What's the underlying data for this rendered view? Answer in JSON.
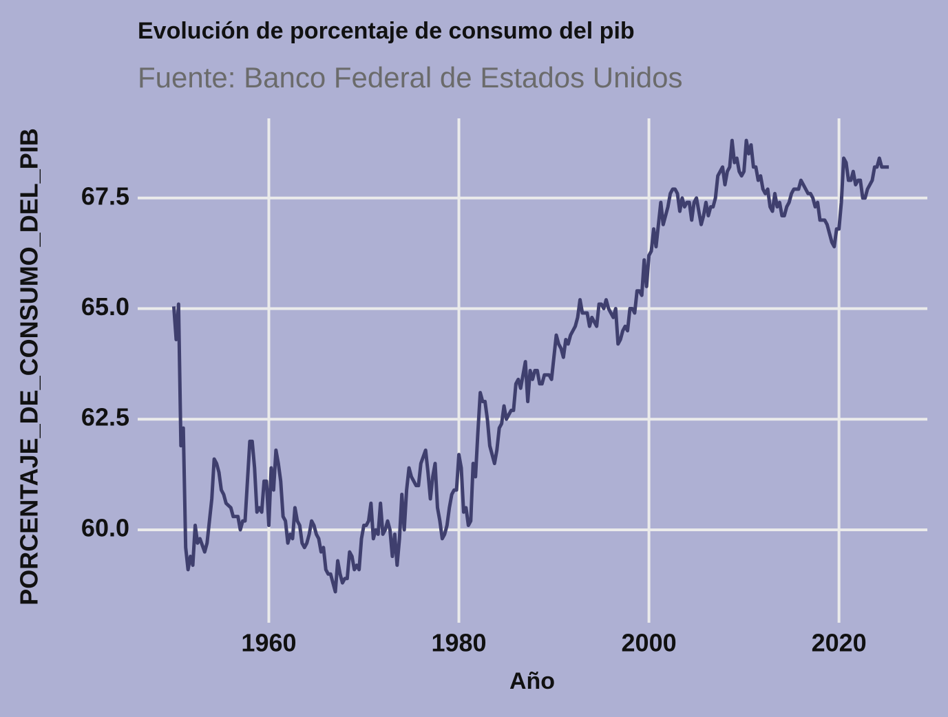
{
  "chart_data": {
    "type": "line",
    "title": "Evolución de porcentaje de consumo del pib",
    "subtitle": "Fuente: Banco Federal de Estados Unidos",
    "x_label": "Año",
    "y_label": "PORCENTAJE_DE_CONSUMO_DEL_PIB",
    "xlim": [
      1946.2,
      2029.3
    ],
    "ylim": [
      57.9,
      69.3
    ],
    "xticks": [
      1960,
      1980,
      2000,
      2020
    ],
    "yticks": [
      {
        "value": 60,
        "label": "60.0"
      },
      62.5,
      {
        "value": 65,
        "label": "65.0"
      },
      67.5
    ],
    "grid": true,
    "color": "#3f3f6e",
    "x": [
      1950,
      1950.25,
      1950.5,
      1950.75,
      1951,
      1951.25,
      1951.5,
      1951.75,
      1952,
      1952.25,
      1952.5,
      1952.75,
      1953.25,
      1953.5,
      1954,
      1954.25,
      1954.5,
      1954.75,
      1955,
      1955.25,
      1955.5,
      1956,
      1956.25,
      1956.75,
      1957,
      1957.25,
      1957.5,
      1958,
      1958.25,
      1958.5,
      1958.75,
      1959,
      1959.25,
      1959.5,
      1959.75,
      1960,
      1960.25,
      1960.5,
      1960.75,
      1961,
      1961.25,
      1961.5,
      1961.75,
      1962,
      1962.25,
      1962.5,
      1962.75,
      1963,
      1963.25,
      1963.5,
      1963.75,
      1964,
      1964.25,
      1964.5,
      1964.75,
      1965,
      1965.25,
      1965.5,
      1965.75,
      1966,
      1966.25,
      1966.5,
      1966.75,
      1967,
      1967.25,
      1967.5,
      1967.75,
      1968,
      1968.25,
      1968.5,
      1968.75,
      1969,
      1969.25,
      1969.5,
      1969.75,
      1970,
      1970.25,
      1970.5,
      1970.75,
      1971,
      1971.25,
      1971.5,
      1971.75,
      1972,
      1972.25,
      1972.5,
      1972.75,
      1973,
      1973.25,
      1973.5,
      1973.75,
      1974,
      1974.25,
      1974.5,
      1974.75,
      1975,
      1975.5,
      1975.75,
      1976,
      1976.5,
      1976.75,
      1977,
      1977.25,
      1977.5,
      1977.75,
      1978,
      1978.25,
      1978.5,
      1978.75,
      1979,
      1979.25,
      1979.5,
      1979.75,
      1980,
      1980.25,
      1980.5,
      1980.75,
      1981,
      1981.25,
      1981.5,
      1981.75,
      1982,
      1982.25,
      1982.5,
      1982.75,
      1983,
      1983.25,
      1983.5,
      1983.75,
      1984,
      1984.25,
      1984.5,
      1984.75,
      1985,
      1985.5,
      1985.75,
      1986,
      1986.25,
      1986.5,
      1986.75,
      1987,
      1987.25,
      1987.5,
      1987.75,
      1988,
      1988.25,
      1988.5,
      1988.75,
      1989,
      1989.5,
      1989.75,
      1990,
      1990.25,
      1990.5,
      1990.75,
      1991,
      1991.25,
      1991.5,
      1991.75,
      1992,
      1992.25,
      1992.5,
      1992.75,
      1993,
      1993.5,
      1993.75,
      1994,
      1994.25,
      1994.5,
      1994.75,
      1995,
      1995.25,
      1995.5,
      1995.75,
      1996,
      1996.25,
      1996.5,
      1996.75,
      1997,
      1997.25,
      1997.5,
      1997.75,
      1998,
      1998.25,
      1998.5,
      1998.75,
      1999,
      1999.25,
      1999.5,
      1999.75,
      2000,
      2000.25,
      2000.5,
      2000.75,
      2001,
      2001.25,
      2001.5,
      2001.75,
      2002,
      2002.25,
      2002.5,
      2002.75,
      2003,
      2003.25,
      2003.5,
      2003.75,
      2004,
      2004.25,
      2004.5,
      2004.75,
      2005,
      2005.25,
      2005.5,
      2005.75,
      2006,
      2006.25,
      2006.5,
      2006.75,
      2007,
      2007.25,
      2007.5,
      2007.75,
      2008,
      2008.25,
      2008.5,
      2008.75,
      2009,
      2009.25,
      2009.5,
      2009.75,
      2010,
      2010.25,
      2010.5,
      2010.75,
      2011,
      2011.25,
      2011.5,
      2011.75,
      2012,
      2012.25,
      2012.5,
      2012.75,
      2013,
      2013.25,
      2013.5,
      2013.75,
      2014,
      2014.25,
      2014.5,
      2014.75,
      2015,
      2015.25,
      2015.5,
      2015.75,
      2016,
      2016.25,
      2016.5,
      2016.75,
      2017,
      2017.25,
      2017.5,
      2017.75,
      2018,
      2018.25,
      2018.5,
      2018.75,
      2019,
      2019.25,
      2019.5,
      2019.75,
      2020,
      2020.25,
      2020.5,
      2020.75,
      2021,
      2021.25,
      2021.5,
      2021.75,
      2022,
      2022.25,
      2022.5,
      2022.75,
      2023,
      2023.5,
      2023.75,
      2024,
      2024.25,
      2024.5,
      2025,
      2025.25
    ],
    "values": [
      65.05,
      64.3,
      65.1,
      61.9,
      62.3,
      59.6,
      59.1,
      59.4,
      59.2,
      60.1,
      59.7,
      59.8,
      59.5,
      59.7,
      60.7,
      61.6,
      61.5,
      61.3,
      60.9,
      60.8,
      60.6,
      60.5,
      60.3,
      60.3,
      60.0,
      60.2,
      60.2,
      62.0,
      62.0,
      61.4,
      60.4,
      60.5,
      60.4,
      61.1,
      61.1,
      60.1,
      61.4,
      60.9,
      61.8,
      61.5,
      61.1,
      60.3,
      60.2,
      59.7,
      59.9,
      59.8,
      60.5,
      60.2,
      60.1,
      59.7,
      59.6,
      59.7,
      59.9,
      60.2,
      60.1,
      59.9,
      59.8,
      59.5,
      59.6,
      59.1,
      59.0,
      59.0,
      58.8,
      58.6,
      59.3,
      59.0,
      58.8,
      58.9,
      58.9,
      59.5,
      59.4,
      59.1,
      59.2,
      59.1,
      59.8,
      60.1,
      60.1,
      60.2,
      60.6,
      59.8,
      60.0,
      59.9,
      60.6,
      59.9,
      60.0,
      60.2,
      60.0,
      59.4,
      59.9,
      59.2,
      59.8,
      60.8,
      60.0,
      60.9,
      61.4,
      61.2,
      61.0,
      61.0,
      61.5,
      61.8,
      61.3,
      60.7,
      61.2,
      61.5,
      60.5,
      60.2,
      59.8,
      59.9,
      60.1,
      60.5,
      60.8,
      60.9,
      60.9,
      61.7,
      61.4,
      60.4,
      60.5,
      60.1,
      60.2,
      61.5,
      61.2,
      62.2,
      63.1,
      62.9,
      62.9,
      62.5,
      61.9,
      61.7,
      61.5,
      61.8,
      62.3,
      62.4,
      62.8,
      62.5,
      62.7,
      62.7,
      63.3,
      63.4,
      63.2,
      63.5,
      63.8,
      62.9,
      63.6,
      63.4,
      63.6,
      63.6,
      63.3,
      63.3,
      63.5,
      63.5,
      63.4,
      63.9,
      64.4,
      64.2,
      64.1,
      63.9,
      64.3,
      64.2,
      64.4,
      64.5,
      64.6,
      64.8,
      65.2,
      64.9,
      64.9,
      64.6,
      64.8,
      64.7,
      64.6,
      65.1,
      65.1,
      65.0,
      65.2,
      65.0,
      64.9,
      64.8,
      65.0,
      64.2,
      64.3,
      64.5,
      64.6,
      64.5,
      65.0,
      65.0,
      64.9,
      65.4,
      65.4,
      65.3,
      66.1,
      65.5,
      66.2,
      66.3,
      66.8,
      66.4,
      66.9,
      67.4,
      66.9,
      67.1,
      67.3,
      67.6,
      67.7,
      67.7,
      67.6,
      67.2,
      67.5,
      67.3,
      67.4,
      67.4,
      67.0,
      67.4,
      67.5,
      67.2,
      66.9,
      67.1,
      67.4,
      67.1,
      67.3,
      67.3,
      67.5,
      68.0,
      68.1,
      68.2,
      67.8,
      68.1,
      68.2,
      68.8,
      68.3,
      68.4,
      68.1,
      68.0,
      68.1,
      68.8,
      68.5,
      68.7,
      68.2,
      68.2,
      67.9,
      68.0,
      67.7,
      67.6,
      67.7,
      67.3,
      67.2,
      67.6,
      67.3,
      67.4,
      67.1,
      67.1,
      67.3,
      67.4,
      67.6,
      67.7,
      67.7,
      67.7,
      67.9,
      67.8,
      67.7,
      67.6,
      67.6,
      67.5,
      67.3,
      67.4,
      67.0,
      67.0,
      67.0,
      66.9,
      66.7,
      66.5,
      66.4,
      66.8,
      66.8,
      67.4,
      68.4,
      68.3,
      67.9,
      67.9,
      68.1,
      67.8,
      67.9,
      67.9,
      67.5,
      67.5,
      67.7,
      67.9,
      68.2,
      68.2,
      68.4,
      68.2,
      68.2,
      68.2
    ]
  }
}
